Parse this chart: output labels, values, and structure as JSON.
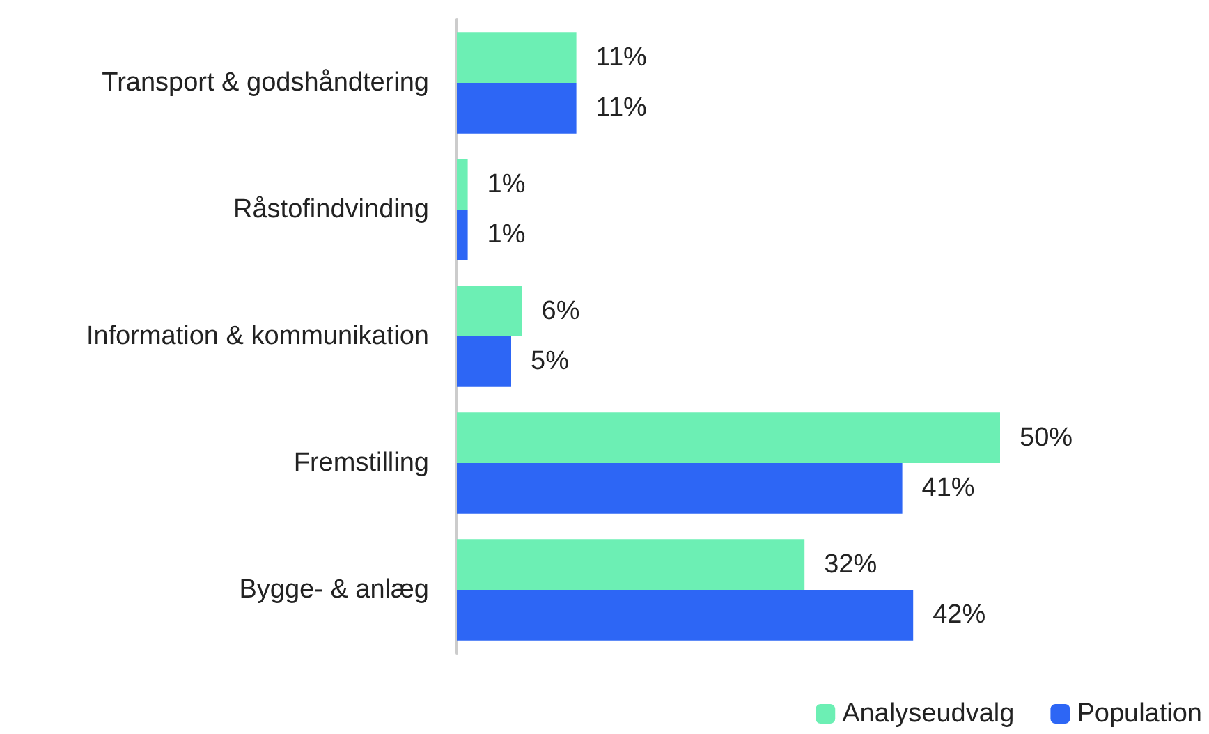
{
  "chart_data": {
    "type": "bar",
    "orientation": "horizontal",
    "categories": [
      "Transport & godshåndtering",
      "Råstofindvinding",
      "Information & kommunikation",
      "Fremstilling",
      "Bygge- & anlæg"
    ],
    "series": [
      {
        "name": "Analyseudvalg",
        "color": "#6cefb4",
        "values": [
          11,
          1,
          6,
          50,
          32
        ],
        "value_labels": [
          "11%",
          "1%",
          "6%",
          "50%",
          "32%"
        ]
      },
      {
        "name": "Population",
        "color": "#2d66f5",
        "values": [
          11,
          1,
          5,
          41,
          42
        ],
        "value_labels": [
          "11%",
          "1%",
          "5%",
          "41%",
          "42%"
        ]
      }
    ],
    "legend": "bottom right",
    "grid": false
  }
}
